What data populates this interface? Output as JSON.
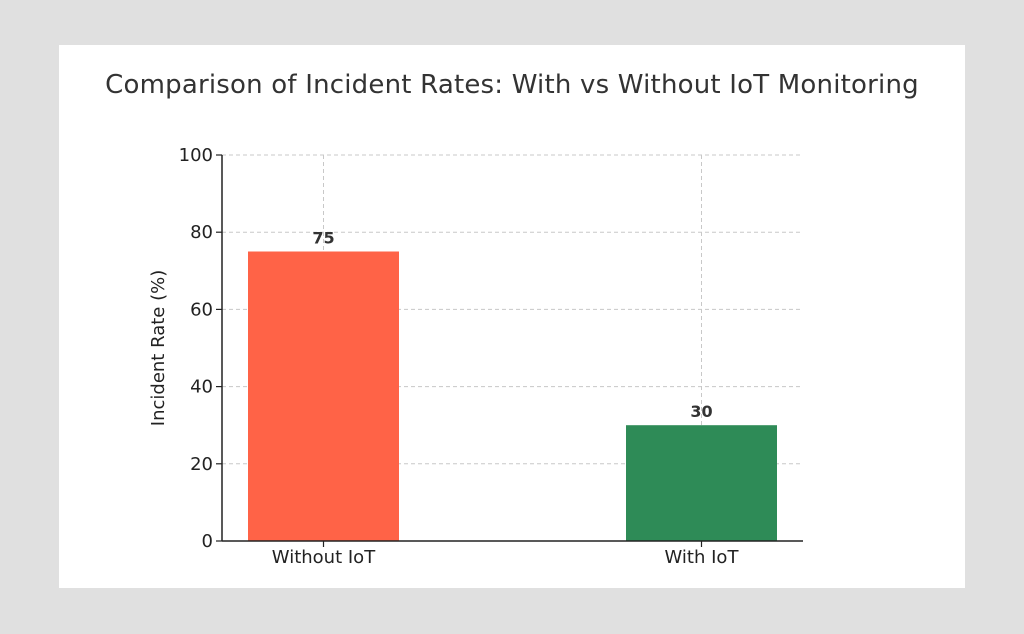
{
  "chart_data": {
    "type": "bar",
    "title": "Comparison of Incident Rates: With vs Without IoT Monitoring",
    "xlabel": "",
    "ylabel": "Incident Rate (%)",
    "categories": [
      "Without IoT",
      "With IoT"
    ],
    "values": [
      75,
      30
    ],
    "data_labels": [
      "75",
      "30"
    ],
    "colors": [
      "#ff6347",
      "#2e8b57"
    ],
    "ylim": [
      0,
      100
    ],
    "yticks": [
      0,
      20,
      40,
      60,
      80,
      100
    ],
    "grid": true,
    "legend": false
  }
}
